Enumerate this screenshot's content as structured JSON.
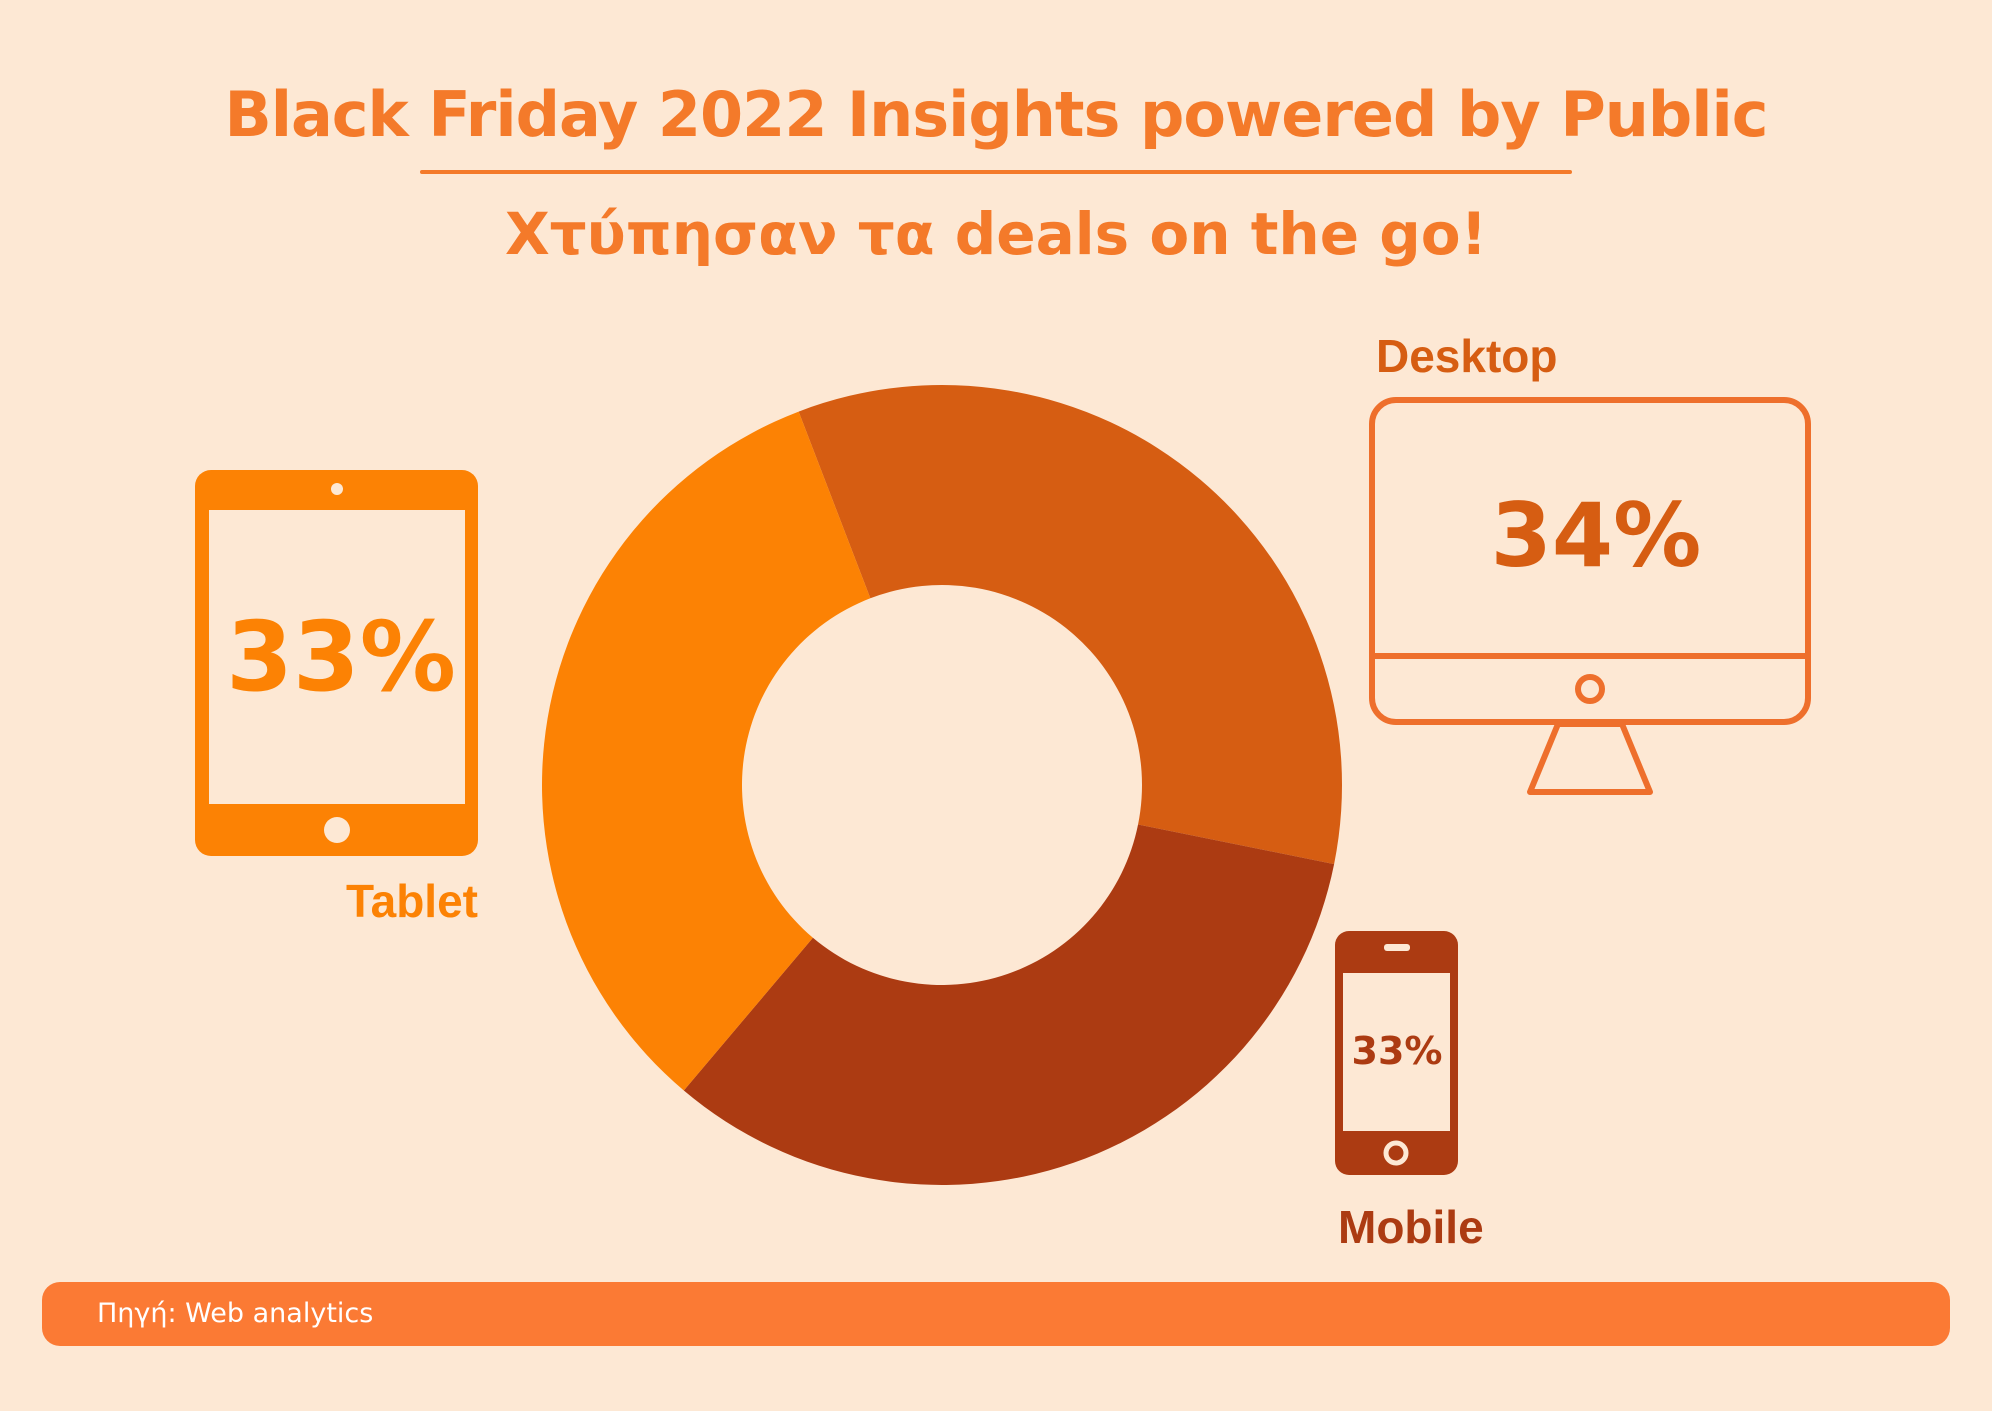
{
  "header": {
    "title": "Black Friday 2022 Insights powered by Public",
    "subtitle": "Χτύπησαν τα deals on the go!"
  },
  "chart_data": {
    "type": "pie",
    "categories": [
      "Desktop",
      "Mobile",
      "Tablet"
    ],
    "values": [
      34,
      33,
      33
    ],
    "unit": "%",
    "value_labels": [
      "34%",
      "33%",
      "33%"
    ],
    "colors": [
      "#d65d12",
      "#ac3b12",
      "#fc8204"
    ],
    "title": "Black Friday 2022 Insights powered by Public",
    "donut": true
  },
  "devices": {
    "desktop": {
      "label": "Desktop",
      "value": "34%",
      "color": "#ee6f2c"
    },
    "mobile": {
      "label": "Mobile",
      "value": "33%",
      "color": "#ac3b12"
    },
    "tablet": {
      "label": "Tablet",
      "value": "33%",
      "color": "#fc8204"
    }
  },
  "footer": {
    "source": "Πηγή: Web analytics"
  },
  "colors": {
    "background": "#fde8d4",
    "accent": "#f47a2a",
    "source_bar": "#fb7a34"
  }
}
